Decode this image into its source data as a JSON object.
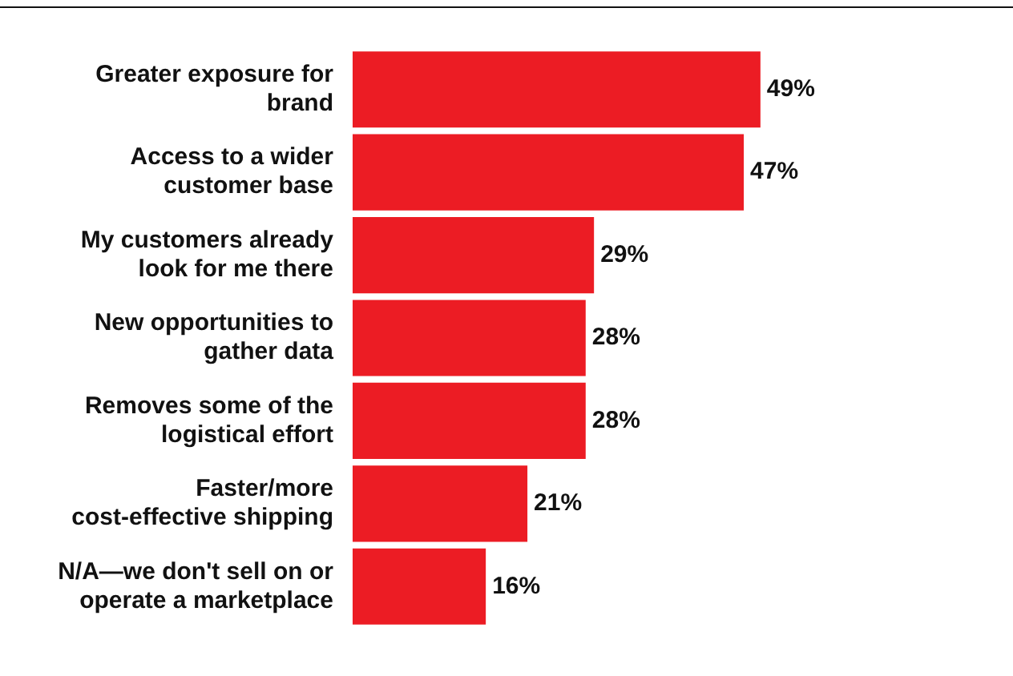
{
  "chart_data": {
    "type": "bar",
    "orientation": "horizontal",
    "categories": [
      "Greater exposure for brand",
      "Access to a wider customer base",
      "My customers already look for me there",
      "New opportunities to gather data",
      "Removes some of the logistical effort",
      "Faster/more cost-effective shipping",
      "N/A—we don't sell on or operate a marketplace"
    ],
    "values": [
      49,
      47,
      29,
      28,
      28,
      21,
      16
    ],
    "value_labels": [
      "49%",
      "47%",
      "29%",
      "28%",
      "28%",
      "21%",
      "16%"
    ],
    "color": "#ec1c24",
    "legend": false
  }
}
